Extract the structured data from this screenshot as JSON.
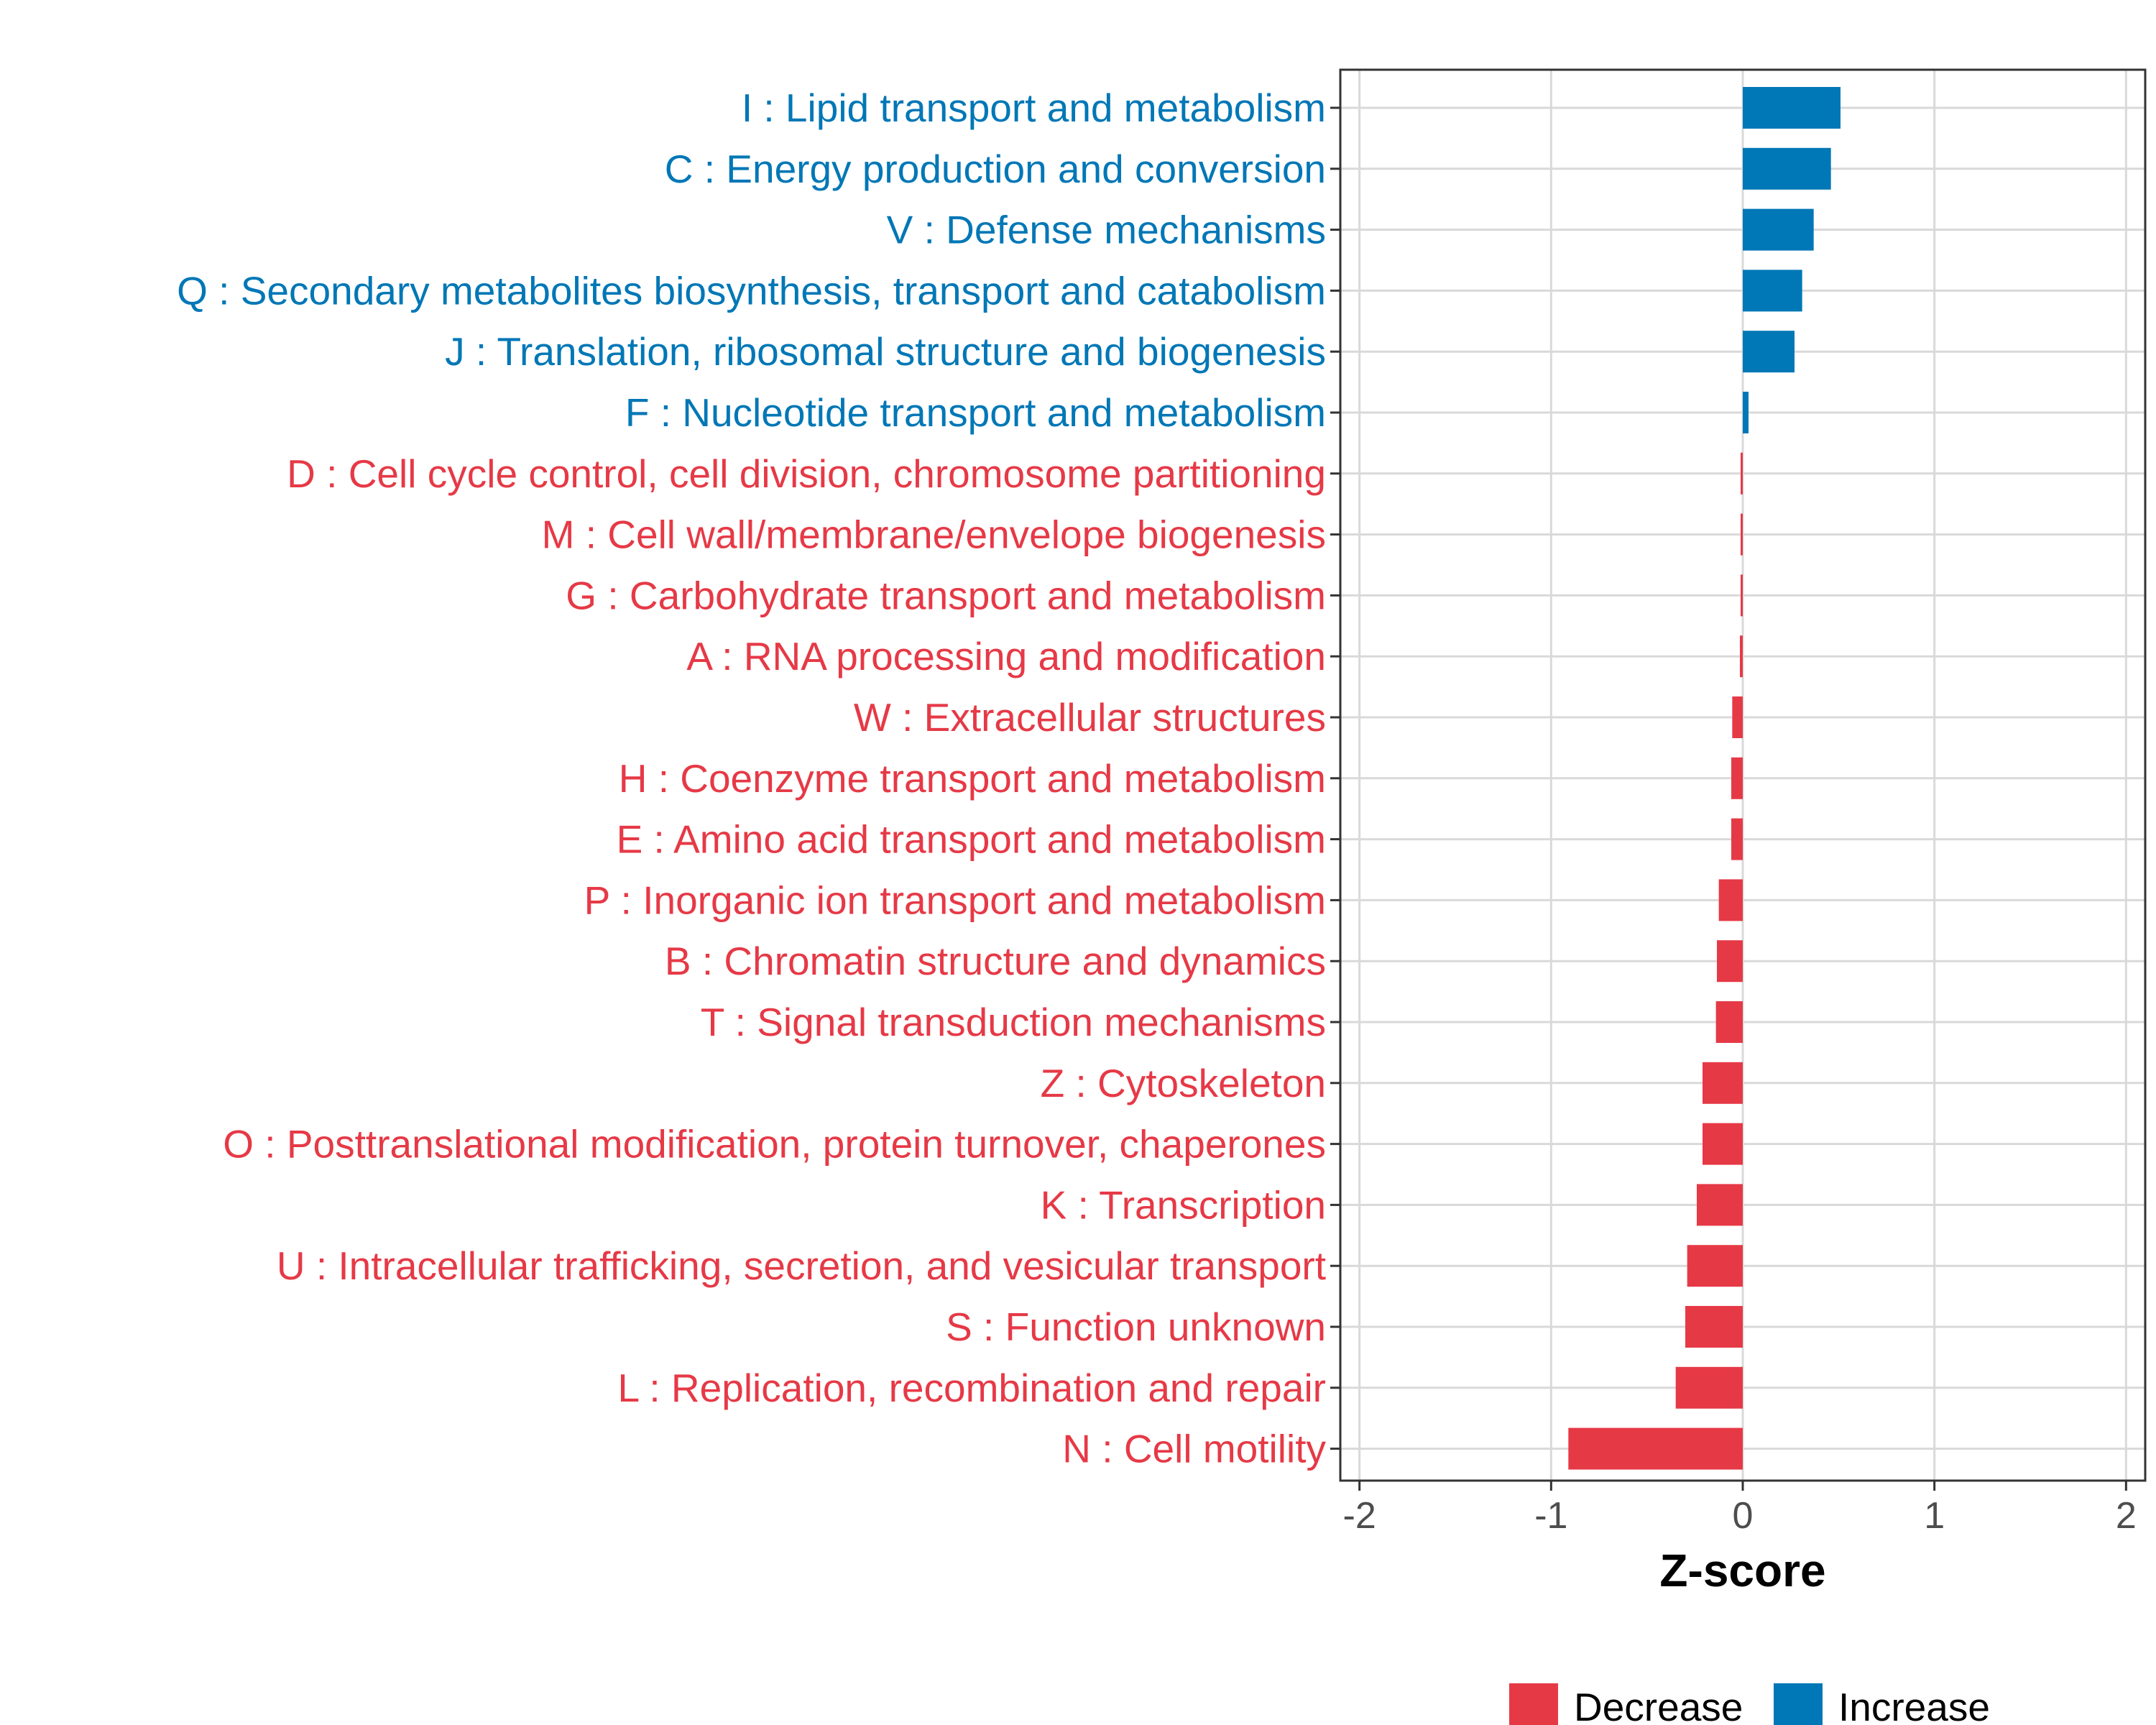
{
  "colors": {
    "decrease": "#E63946",
    "increase": "#0077B6",
    "grid": "#D9D9D9",
    "frame": "#333333"
  },
  "chart_data": {
    "type": "bar",
    "orientation": "horizontal",
    "title": "",
    "xlabel": "Z-score",
    "ylabel": "",
    "xlim": [
      -2.1,
      2.1
    ],
    "xticks": [
      -2,
      -1,
      0,
      1,
      2
    ],
    "xtick_labels": [
      "-2",
      "-1",
      "0",
      "1",
      "2"
    ],
    "grid": true,
    "categories": [
      "I : Lipid transport and metabolism",
      "C : Energy production and conversion",
      "V : Defense mechanisms",
      "Q : Secondary metabolites biosynthesis, transport and catabolism",
      "J : Translation, ribosomal structure and biogenesis",
      "F : Nucleotide transport and metabolism",
      "D : Cell cycle control, cell division, chromosome partitioning",
      "M : Cell wall/membrane/envelope biogenesis",
      "G : Carbohydrate transport and metabolism",
      "A : RNA processing and modification",
      "W : Extracellular structures",
      "H : Coenzyme transport and metabolism",
      "E : Amino acid transport and metabolism",
      "P : Inorganic ion transport and metabolism",
      "B : Chromatin structure and dynamics",
      "T : Signal transduction mechanisms",
      "Z : Cytoskeleton",
      "O : Posttranslational modification, protein turnover, chaperones",
      "K : Transcription",
      "U : Intracellular trafficking, secretion, and vesicular transport",
      "S : Function unknown",
      "L : Replication, recombination and repair",
      "N : Cell motility"
    ],
    "values": [
      0.51,
      0.46,
      0.37,
      0.31,
      0.27,
      0.03,
      -0.004,
      -0.006,
      -0.008,
      -0.015,
      -0.055,
      -0.06,
      -0.06,
      -0.125,
      -0.135,
      -0.14,
      -0.21,
      -0.21,
      -0.24,
      -0.29,
      -0.3,
      -0.35,
      -0.91
    ],
    "groups": [
      "Increase",
      "Increase",
      "Increase",
      "Increase",
      "Increase",
      "Increase",
      "Decrease",
      "Decrease",
      "Decrease",
      "Decrease",
      "Decrease",
      "Decrease",
      "Decrease",
      "Decrease",
      "Decrease",
      "Decrease",
      "Decrease",
      "Decrease",
      "Decrease",
      "Decrease",
      "Decrease",
      "Decrease",
      "Decrease"
    ],
    "legend": {
      "position": "bottom",
      "entries": [
        {
          "label": "Decrease",
          "color": "#E63946"
        },
        {
          "label": "Increase",
          "color": "#0077B6"
        }
      ]
    }
  }
}
